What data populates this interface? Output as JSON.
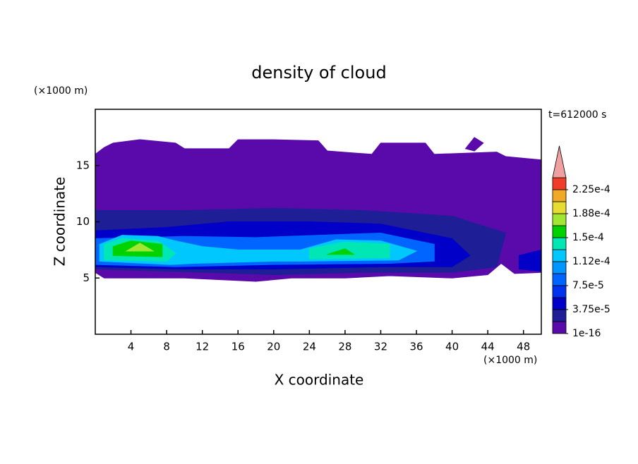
{
  "chart_data": {
    "type": "contour",
    "title": "density of cloud",
    "xlabel": "X coordinate",
    "ylabel": "Z coordinate",
    "x_unit": "(×1000 m)",
    "y_unit": "(×1000 m)",
    "annotation": "t=612000 s",
    "xlim": [
      0,
      50
    ],
    "xticks": [
      4,
      8,
      12,
      16,
      20,
      24,
      28,
      32,
      36,
      40,
      44,
      48
    ],
    "ylim": [
      0,
      20
    ],
    "yticks": [
      5,
      10,
      15
    ],
    "colorbar": {
      "colors": [
        "#5a0aaa",
        "#1e1e96",
        "#0000c8",
        "#0032f0",
        "#0064ff",
        "#0096ff",
        "#00c8ff",
        "#00e6b4",
        "#00d200",
        "#a0e632",
        "#e6dc32",
        "#f0aa28",
        "#f03c28"
      ],
      "extend_color": "#f0a0a0",
      "ticks": [
        {
          "value": 1e-16,
          "label": "1e-16"
        },
        {
          "value": 3.75e-05,
          "label": "3.75e-5"
        },
        {
          "value": 7.5e-05,
          "label": "7.5e-5"
        },
        {
          "value": 0.000112,
          "label": "1.12e-4"
        },
        {
          "value": 0.00015,
          "label": "1.5e-4"
        },
        {
          "value": 0.000188,
          "label": "1.88e-4"
        },
        {
          "value": 0.000225,
          "label": "2.25e-4"
        }
      ]
    },
    "contours": [
      {
        "color": "#5a0aaa",
        "points": [
          [
            0,
            5.5
          ],
          [
            1,
            5
          ],
          [
            10,
            5
          ],
          [
            18,
            4.7
          ],
          [
            22,
            5
          ],
          [
            28,
            5
          ],
          [
            33,
            5.2
          ],
          [
            40,
            5
          ],
          [
            44,
            5.3
          ],
          [
            45.5,
            6.3
          ],
          [
            47,
            5.4
          ],
          [
            50,
            5.5
          ],
          [
            50,
            15.5
          ],
          [
            46,
            15.8
          ],
          [
            45,
            16.2
          ],
          [
            38,
            16
          ],
          [
            37,
            17
          ],
          [
            32,
            17
          ],
          [
            31,
            16
          ],
          [
            26,
            16.3
          ],
          [
            25,
            17.2
          ],
          [
            20,
            17.3
          ],
          [
            16,
            17.3
          ],
          [
            15,
            16.5
          ],
          [
            10,
            16.5
          ],
          [
            9,
            17
          ],
          [
            5,
            17.3
          ],
          [
            2,
            17
          ],
          [
            1,
            16.6
          ],
          [
            0,
            16
          ]
        ]
      },
      {
        "color": "#5a0aaa",
        "points": [
          [
            41.5,
            16.5
          ],
          [
            42.5,
            17.5
          ],
          [
            43.5,
            17
          ],
          [
            42.5,
            16.3
          ]
        ]
      },
      {
        "color": "#1e1e96",
        "points": [
          [
            0,
            5.8
          ],
          [
            12,
            5.5
          ],
          [
            20,
            5.3
          ],
          [
            30,
            5.5
          ],
          [
            40,
            5.5
          ],
          [
            45,
            6
          ],
          [
            46,
            9
          ],
          [
            40,
            10.5
          ],
          [
            30,
            11
          ],
          [
            20,
            11.2
          ],
          [
            10,
            11
          ],
          [
            0,
            11
          ]
        ]
      },
      {
        "color": "#0000c8",
        "points": [
          [
            0,
            6
          ],
          [
            10,
            5.8
          ],
          [
            20,
            5.8
          ],
          [
            32,
            6
          ],
          [
            40,
            6
          ],
          [
            42,
            7
          ],
          [
            40,
            8.5
          ],
          [
            32,
            9.8
          ],
          [
            24,
            10
          ],
          [
            15,
            10
          ],
          [
            8,
            9.5
          ],
          [
            0,
            9.2
          ]
        ]
      },
      {
        "color": "#0000c8",
        "points": [
          [
            47.5,
            5.8
          ],
          [
            50,
            5.6
          ],
          [
            50,
            7.5
          ],
          [
            47.5,
            7
          ]
        ]
      },
      {
        "color": "#0064ff",
        "points": [
          [
            0,
            6.2
          ],
          [
            9,
            6
          ],
          [
            20,
            6.2
          ],
          [
            33,
            6.3
          ],
          [
            38,
            6.5
          ],
          [
            38,
            8
          ],
          [
            32,
            9
          ],
          [
            25,
            8.8
          ],
          [
            18,
            8.6
          ],
          [
            10,
            8.7
          ],
          [
            0,
            8.5
          ]
        ]
      },
      {
        "color": "#00c8ff",
        "points": [
          [
            0.5,
            6.5
          ],
          [
            8.5,
            6.2
          ],
          [
            11,
            6.3
          ],
          [
            20,
            6.5
          ],
          [
            23,
            6.5
          ],
          [
            34,
            6.6
          ],
          [
            36,
            7.4
          ],
          [
            32,
            8.3
          ],
          [
            27,
            8.4
          ],
          [
            23,
            7.5
          ],
          [
            16,
            7.5
          ],
          [
            12,
            7.8
          ],
          [
            9,
            8.3
          ],
          [
            7,
            8.7
          ],
          [
            3,
            8.8
          ],
          [
            0.5,
            8
          ]
        ]
      },
      {
        "color": "#00e6b4",
        "points": [
          [
            1,
            6.6
          ],
          [
            8,
            6.5
          ],
          [
            9,
            7.2
          ],
          [
            7,
            8.3
          ],
          [
            3,
            8.5
          ],
          [
            1,
            8
          ]
        ]
      },
      {
        "color": "#00e6b4",
        "points": [
          [
            24,
            6.7
          ],
          [
            33,
            6.8
          ],
          [
            33,
            8
          ],
          [
            28,
            8.2
          ],
          [
            24,
            7.6
          ]
        ]
      },
      {
        "color": "#00d200",
        "points": [
          [
            2,
            7
          ],
          [
            7.5,
            6.9
          ],
          [
            7.5,
            8
          ],
          [
            4,
            8.3
          ],
          [
            2,
            7.8
          ]
        ]
      },
      {
        "color": "#00d200",
        "points": [
          [
            26,
            7.1
          ],
          [
            29,
            7.1
          ],
          [
            28,
            7.6
          ]
        ]
      },
      {
        "color": "#a0e632",
        "points": [
          [
            3.5,
            7.4
          ],
          [
            6.5,
            7.4
          ],
          [
            5,
            8.1
          ]
        ]
      }
    ]
  }
}
